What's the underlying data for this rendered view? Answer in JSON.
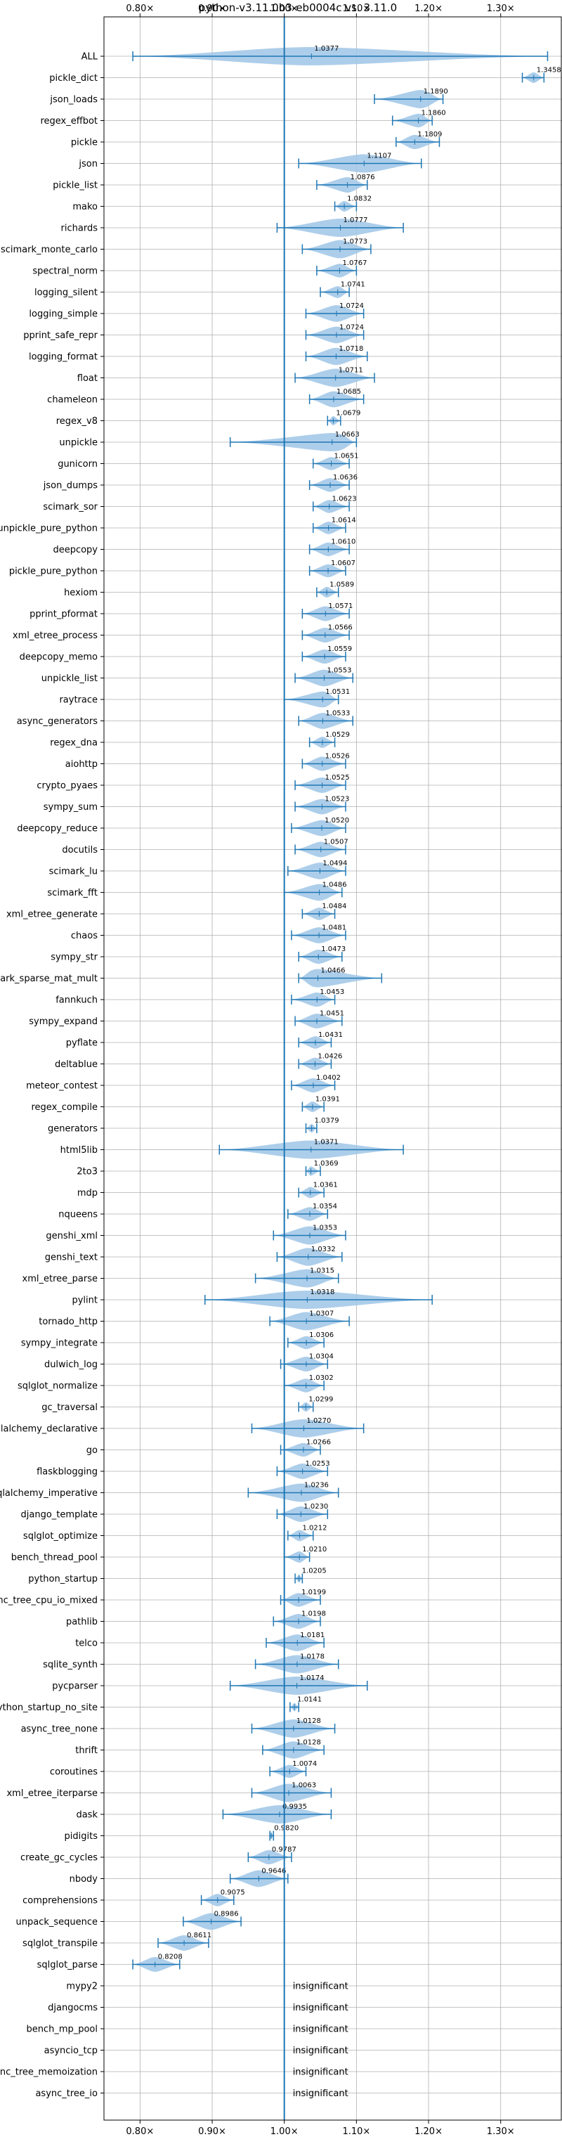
{
  "chart_data": {
    "type": "violin",
    "title": "python-v3.11.0b3-eb0004c vs. 3.11.0",
    "xlim": [
      0.75,
      1.385
    ],
    "x_ticks": [
      0.8,
      0.9,
      1.0,
      1.1,
      1.2,
      1.3
    ],
    "x_tick_labels": [
      "0.80×",
      "0.90×",
      "1.00×",
      "1.10×",
      "1.20×",
      "1.30×"
    ],
    "reference_line": 1.0,
    "grid": true,
    "colors": {
      "violin": "#9fc6e6",
      "line": "#1f77b4",
      "grid": "#b0b0b0",
      "text": "#000000"
    },
    "insignificant_label": "insignificant",
    "rows": [
      {
        "name": "ALL",
        "value": 1.0377,
        "label": "1.0377",
        "low": 0.79,
        "high": 1.365
      },
      {
        "name": "pickle_dict",
        "value": 1.3458,
        "label": "1.3458",
        "low": 1.33,
        "high": 1.36
      },
      {
        "name": "json_loads",
        "value": 1.189,
        "label": "1.1890",
        "low": 1.125,
        "high": 1.22
      },
      {
        "name": "regex_effbot",
        "value": 1.186,
        "label": "1.1860",
        "low": 1.15,
        "high": 1.205
      },
      {
        "name": "pickle",
        "value": 1.1809,
        "label": "1.1809",
        "low": 1.155,
        "high": 1.215
      },
      {
        "name": "json",
        "value": 1.1107,
        "label": "1.1107",
        "low": 1.02,
        "high": 1.19
      },
      {
        "name": "pickle_list",
        "value": 1.0876,
        "label": "1.0876",
        "low": 1.045,
        "high": 1.115
      },
      {
        "name": "mako",
        "value": 1.0832,
        "label": "1.0832",
        "low": 1.07,
        "high": 1.1
      },
      {
        "name": "richards",
        "value": 1.0777,
        "label": "1.0777",
        "low": 0.99,
        "high": 1.165
      },
      {
        "name": "scimark_monte_carlo",
        "value": 1.0773,
        "label": "1.0773",
        "low": 1.025,
        "high": 1.12
      },
      {
        "name": "spectral_norm",
        "value": 1.0767,
        "label": "1.0767",
        "low": 1.045,
        "high": 1.1
      },
      {
        "name": "logging_silent",
        "value": 1.0741,
        "label": "1.0741",
        "low": 1.05,
        "high": 1.09
      },
      {
        "name": "logging_simple",
        "value": 1.0724,
        "label": "1.0724",
        "low": 1.03,
        "high": 1.11
      },
      {
        "name": "pprint_safe_repr",
        "value": 1.0724,
        "label": "1.0724",
        "low": 1.03,
        "high": 1.11
      },
      {
        "name": "logging_format",
        "value": 1.0718,
        "label": "1.0718",
        "low": 1.03,
        "high": 1.115
      },
      {
        "name": "float",
        "value": 1.0711,
        "label": "1.0711",
        "low": 1.015,
        "high": 1.125
      },
      {
        "name": "chameleon",
        "value": 1.0685,
        "label": "1.0685",
        "low": 1.035,
        "high": 1.11
      },
      {
        "name": "regex_v8",
        "value": 1.0679,
        "label": "1.0679",
        "low": 1.06,
        "high": 1.078
      },
      {
        "name": "unpickle",
        "value": 1.0663,
        "label": "1.0663",
        "low": 0.925,
        "high": 1.1
      },
      {
        "name": "gunicorn",
        "value": 1.0651,
        "label": "1.0651",
        "low": 1.04,
        "high": 1.09
      },
      {
        "name": "json_dumps",
        "value": 1.0636,
        "label": "1.0636",
        "low": 1.035,
        "high": 1.09
      },
      {
        "name": "scimark_sor",
        "value": 1.0623,
        "label": "1.0623",
        "low": 1.04,
        "high": 1.09
      },
      {
        "name": "unpickle_pure_python",
        "value": 1.0614,
        "label": "1.0614",
        "low": 1.04,
        "high": 1.085
      },
      {
        "name": "deepcopy",
        "value": 1.061,
        "label": "1.0610",
        "low": 1.035,
        "high": 1.09
      },
      {
        "name": "pickle_pure_python",
        "value": 1.0607,
        "label": "1.0607",
        "low": 1.035,
        "high": 1.085
      },
      {
        "name": "hexiom",
        "value": 1.0589,
        "label": "1.0589",
        "low": 1.045,
        "high": 1.075
      },
      {
        "name": "pprint_pformat",
        "value": 1.0571,
        "label": "1.0571",
        "low": 1.025,
        "high": 1.09
      },
      {
        "name": "xml_etree_process",
        "value": 1.0566,
        "label": "1.0566",
        "low": 1.025,
        "high": 1.09
      },
      {
        "name": "deepcopy_memo",
        "value": 1.0559,
        "label": "1.0559",
        "low": 1.025,
        "high": 1.085
      },
      {
        "name": "unpickle_list",
        "value": 1.0553,
        "label": "1.0553",
        "low": 1.015,
        "high": 1.095
      },
      {
        "name": "raytrace",
        "value": 1.0531,
        "label": "1.0531",
        "low": 1.0,
        "high": 1.075
      },
      {
        "name": "async_generators",
        "value": 1.0533,
        "label": "1.0533",
        "low": 1.02,
        "high": 1.095
      },
      {
        "name": "regex_dna",
        "value": 1.0529,
        "label": "1.0529",
        "low": 1.035,
        "high": 1.07
      },
      {
        "name": "aiohttp",
        "value": 1.0526,
        "label": "1.0526",
        "low": 1.025,
        "high": 1.085
      },
      {
        "name": "crypto_pyaes",
        "value": 1.0525,
        "label": "1.0525",
        "low": 1.015,
        "high": 1.085
      },
      {
        "name": "sympy_sum",
        "value": 1.0523,
        "label": "1.0523",
        "low": 1.015,
        "high": 1.085
      },
      {
        "name": "deepcopy_reduce",
        "value": 1.052,
        "label": "1.0520",
        "low": 1.01,
        "high": 1.085
      },
      {
        "name": "docutils",
        "value": 1.0507,
        "label": "1.0507",
        "low": 1.015,
        "high": 1.085
      },
      {
        "name": "scimark_lu",
        "value": 1.0494,
        "label": "1.0494",
        "low": 1.005,
        "high": 1.085
      },
      {
        "name": "scimark_fft",
        "value": 1.0486,
        "label": "1.0486",
        "low": 1.0,
        "high": 1.08
      },
      {
        "name": "xml_etree_generate",
        "value": 1.0484,
        "label": "1.0484",
        "low": 1.025,
        "high": 1.07
      },
      {
        "name": "chaos",
        "value": 1.0481,
        "label": "1.0481",
        "low": 1.01,
        "high": 1.085
      },
      {
        "name": "sympy_str",
        "value": 1.0473,
        "label": "1.0473",
        "low": 1.02,
        "high": 1.08
      },
      {
        "name": "scimark_sparse_mat_mult",
        "value": 1.0466,
        "label": "1.0466",
        "low": 1.02,
        "high": 1.135
      },
      {
        "name": "fannkuch",
        "value": 1.0453,
        "label": "1.0453",
        "low": 1.01,
        "high": 1.07
      },
      {
        "name": "sympy_expand",
        "value": 1.0451,
        "label": "1.0451",
        "low": 1.015,
        "high": 1.08
      },
      {
        "name": "pyflate",
        "value": 1.0431,
        "label": "1.0431",
        "low": 1.02,
        "high": 1.065
      },
      {
        "name": "deltablue",
        "value": 1.0426,
        "label": "1.0426",
        "low": 1.02,
        "high": 1.065
      },
      {
        "name": "meteor_contest",
        "value": 1.0402,
        "label": "1.0402",
        "low": 1.01,
        "high": 1.07
      },
      {
        "name": "regex_compile",
        "value": 1.0391,
        "label": "1.0391",
        "low": 1.025,
        "high": 1.055
      },
      {
        "name": "generators",
        "value": 1.0379,
        "label": "1.0379",
        "low": 1.03,
        "high": 1.045
      },
      {
        "name": "html5lib",
        "value": 1.0371,
        "label": "1.0371",
        "low": 0.91,
        "high": 1.165
      },
      {
        "name": "2to3",
        "value": 1.0369,
        "label": "1.0369",
        "low": 1.03,
        "high": 1.05
      },
      {
        "name": "mdp",
        "value": 1.0361,
        "label": "1.0361",
        "low": 1.02,
        "high": 1.055
      },
      {
        "name": "nqueens",
        "value": 1.0354,
        "label": "1.0354",
        "low": 1.005,
        "high": 1.06
      },
      {
        "name": "genshi_xml",
        "value": 1.0353,
        "label": "1.0353",
        "low": 0.985,
        "high": 1.085
      },
      {
        "name": "genshi_text",
        "value": 1.0332,
        "label": "1.0332",
        "low": 0.99,
        "high": 1.08
      },
      {
        "name": "xml_etree_parse",
        "value": 1.0315,
        "label": "1.0315",
        "low": 0.96,
        "high": 1.075
      },
      {
        "name": "pylint",
        "value": 1.0318,
        "label": "1.0318",
        "low": 0.89,
        "high": 1.205
      },
      {
        "name": "tornado_http",
        "value": 1.0307,
        "label": "1.0307",
        "low": 0.98,
        "high": 1.09
      },
      {
        "name": "sympy_integrate",
        "value": 1.0306,
        "label": "1.0306",
        "low": 1.005,
        "high": 1.055
      },
      {
        "name": "dulwich_log",
        "value": 1.0304,
        "label": "1.0304",
        "low": 0.995,
        "high": 1.06
      },
      {
        "name": "sqlglot_normalize",
        "value": 1.0302,
        "label": "1.0302",
        "low": 1.0,
        "high": 1.055
      },
      {
        "name": "gc_traversal",
        "value": 1.0299,
        "label": "1.0299",
        "low": 1.02,
        "high": 1.04
      },
      {
        "name": "sqlalchemy_declarative",
        "value": 1.027,
        "label": "1.0270",
        "low": 0.955,
        "high": 1.11
      },
      {
        "name": "go",
        "value": 1.0266,
        "label": "1.0266",
        "low": 0.995,
        "high": 1.05
      },
      {
        "name": "flaskblogging",
        "value": 1.0253,
        "label": "1.0253",
        "low": 0.99,
        "high": 1.06
      },
      {
        "name": "sqlalchemy_imperative",
        "value": 1.0236,
        "label": "1.0236",
        "low": 0.95,
        "high": 1.075
      },
      {
        "name": "django_template",
        "value": 1.023,
        "label": "1.0230",
        "low": 0.99,
        "high": 1.06
      },
      {
        "name": "sqlglot_optimize",
        "value": 1.0212,
        "label": "1.0212",
        "low": 1.005,
        "high": 1.04
      },
      {
        "name": "bench_thread_pool",
        "value": 1.021,
        "label": "1.0210",
        "low": 1.0,
        "high": 1.035
      },
      {
        "name": "python_startup",
        "value": 1.0205,
        "label": "1.0205",
        "low": 1.015,
        "high": 1.025
      },
      {
        "name": "async_tree_cpu_io_mixed",
        "value": 1.0199,
        "label": "1.0199",
        "low": 0.995,
        "high": 1.05
      },
      {
        "name": "pathlib",
        "value": 1.0198,
        "label": "1.0198",
        "low": 0.985,
        "high": 1.05
      },
      {
        "name": "telco",
        "value": 1.0181,
        "label": "1.0181",
        "low": 0.975,
        "high": 1.055
      },
      {
        "name": "sqlite_synth",
        "value": 1.0178,
        "label": "1.0178",
        "low": 0.96,
        "high": 1.075
      },
      {
        "name": "pycparser",
        "value": 1.0174,
        "label": "1.0174",
        "low": 0.925,
        "high": 1.115
      },
      {
        "name": "python_startup_no_site",
        "value": 1.0141,
        "label": "1.0141",
        "low": 1.008,
        "high": 1.02
      },
      {
        "name": "async_tree_none",
        "value": 1.0128,
        "label": "1.0128",
        "low": 0.955,
        "high": 1.07
      },
      {
        "name": "thrift",
        "value": 1.0128,
        "label": "1.0128",
        "low": 0.97,
        "high": 1.055
      },
      {
        "name": "coroutines",
        "value": 1.0074,
        "label": "1.0074",
        "low": 0.98,
        "high": 1.03
      },
      {
        "name": "xml_etree_iterparse",
        "value": 1.0063,
        "label": "1.0063",
        "low": 0.955,
        "high": 1.065
      },
      {
        "name": "dask",
        "value": 0.9935,
        "label": "0.9935",
        "low": 0.915,
        "high": 1.065
      },
      {
        "name": "pidigits",
        "value": 0.982,
        "label": "0.9820",
        "low": 0.98,
        "high": 0.985
      },
      {
        "name": "create_gc_cycles",
        "value": 0.9787,
        "label": "0.9787",
        "low": 0.95,
        "high": 1.01
      },
      {
        "name": "nbody",
        "value": 0.9646,
        "label": "0.9646",
        "low": 0.925,
        "high": 1.005
      },
      {
        "name": "comprehensions",
        "value": 0.9075,
        "label": "0.9075",
        "low": 0.885,
        "high": 0.93
      },
      {
        "name": "unpack_sequence",
        "value": 0.8986,
        "label": "0.8986",
        "low": 0.86,
        "high": 0.94
      },
      {
        "name": "sqlglot_transpile",
        "value": 0.8611,
        "label": "0.8611",
        "low": 0.825,
        "high": 0.895
      },
      {
        "name": "sqlglot_parse",
        "value": 0.8208,
        "label": "0.8208",
        "low": 0.79,
        "high": 0.855
      },
      {
        "name": "mypy2",
        "insignificant": true
      },
      {
        "name": "djangocms",
        "insignificant": true
      },
      {
        "name": "bench_mp_pool",
        "insignificant": true
      },
      {
        "name": "asyncio_tcp",
        "insignificant": true
      },
      {
        "name": "async_tree_memoization",
        "insignificant": true
      },
      {
        "name": "async_tree_io",
        "insignificant": true
      }
    ]
  }
}
